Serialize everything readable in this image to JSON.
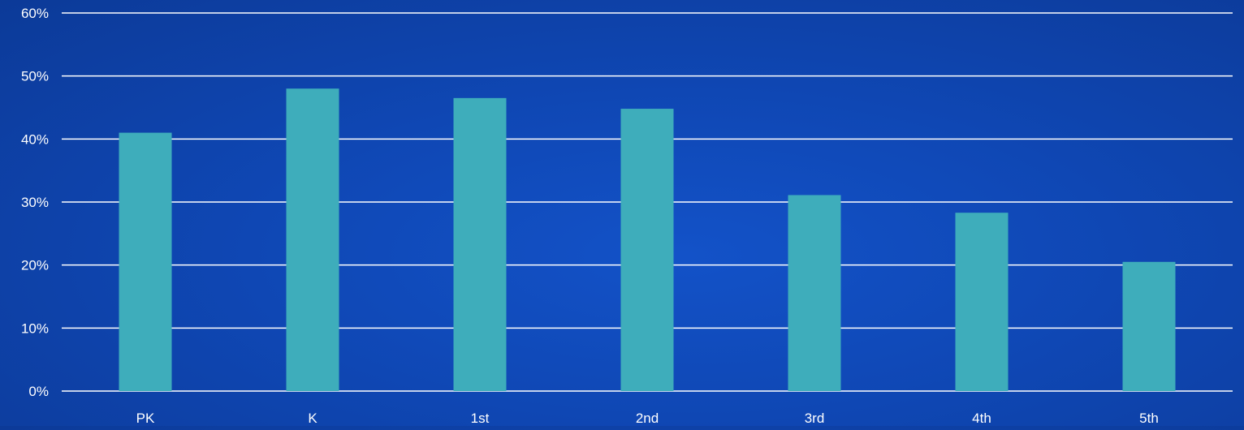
{
  "chart_data": {
    "type": "bar",
    "title": "",
    "xlabel": "",
    "ylabel": "",
    "categories": [
      "PK",
      "K",
      "1st",
      "2nd",
      "3rd",
      "4th",
      "5th"
    ],
    "values": [
      41,
      48,
      46.5,
      44.8,
      31.1,
      28.3,
      20.5
    ],
    "ylim": [
      0,
      60
    ],
    "yticks": [
      0,
      10,
      20,
      30,
      40,
      50,
      60
    ],
    "ytick_labels": [
      "0%",
      "10%",
      "20%",
      "30%",
      "40%",
      "50%",
      "60%"
    ],
    "grid": true,
    "legend": "none",
    "colors": {
      "bar": "#3eadbb",
      "gridline": "#ffffff",
      "text": "#ffffff",
      "background": "#1150c0"
    }
  }
}
